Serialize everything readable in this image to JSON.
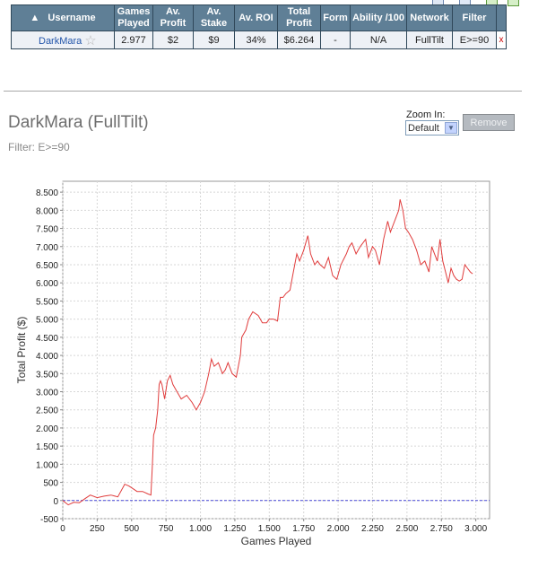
{
  "table": {
    "headers": [
      "Username",
      "Games Played",
      "Av. Profit",
      "Av. Stake",
      "Av. ROI",
      "Total Profit",
      "Form",
      "Ability /100",
      "Network",
      "Filter"
    ],
    "row": {
      "username": "DarkMara",
      "games_played": "2.977",
      "av_profit": "$2",
      "av_stake": "$9",
      "av_roi": "34%",
      "total_profit": "$6.264",
      "form": "-",
      "ability": "N/A",
      "network": "FullTilt",
      "filter": "E>=90",
      "delete": "x"
    }
  },
  "player": {
    "title": "DarkMara (FullTilt)",
    "filter_line": "Filter: E>=90"
  },
  "zoom": {
    "label": "Zoom In:",
    "value": "Default"
  },
  "remove_button": "Remove",
  "colors": {
    "header_bg": "#5f7f96",
    "line": "#e03c3c",
    "zero_line": "#4a4ad8",
    "grid": "#d7d7d7"
  },
  "chart_data": {
    "type": "line",
    "xlabel": "Games Played",
    "ylabel": "Total Profit ($)",
    "xlim": [
      0,
      3100
    ],
    "ylim": [
      -500,
      8800
    ],
    "x_ticks": [
      0,
      250,
      500,
      750,
      1000,
      1250,
      1500,
      1750,
      2000,
      2250,
      2500,
      2750,
      3000
    ],
    "x_tick_labels": [
      "0",
      "250",
      "500",
      "750",
      "1.000",
      "1.250",
      "1.500",
      "1.750",
      "2.000",
      "2.250",
      "2.500",
      "2.750",
      "3.000"
    ],
    "y_ticks": [
      -500,
      0,
      500,
      1000,
      1500,
      2000,
      2500,
      3000,
      3500,
      4000,
      4500,
      5000,
      5500,
      6000,
      6500,
      7000,
      7500,
      8000,
      8500
    ],
    "y_tick_labels": [
      "-500",
      "0",
      "500",
      "1.000",
      "1.500",
      "2.000",
      "2.500",
      "3.000",
      "3.500",
      "4.000",
      "4.500",
      "5.000",
      "5.500",
      "6.000",
      "6.500",
      "7.000",
      "7.500",
      "8.000",
      "8.500"
    ],
    "grid": true,
    "series": [
      {
        "x": [
          0,
          40,
          80,
          120,
          160,
          200,
          250,
          300,
          350,
          400,
          450,
          480,
          500,
          540,
          580,
          620,
          640,
          650,
          660,
          675,
          690,
          700,
          710,
          720,
          740,
          760,
          780,
          800,
          830,
          860,
          900,
          940,
          970,
          1000,
          1030,
          1060,
          1080,
          1100,
          1130,
          1160,
          1180,
          1200,
          1230,
          1260,
          1290,
          1300,
          1330,
          1350,
          1380,
          1420,
          1450,
          1480,
          1500,
          1530,
          1560,
          1580,
          1600,
          1620,
          1650,
          1670,
          1700,
          1720,
          1750,
          1780,
          1800,
          1830,
          1850,
          1870,
          1900,
          1930,
          1960,
          1990,
          2020,
          2060,
          2080,
          2100,
          2130,
          2160,
          2200,
          2220,
          2250,
          2270,
          2300,
          2330,
          2360,
          2380,
          2400,
          2420,
          2440,
          2450,
          2470,
          2490,
          2510,
          2540,
          2570,
          2600,
          2630,
          2660,
          2680,
          2700,
          2720,
          2740,
          2760,
          2780,
          2800,
          2820,
          2840,
          2860,
          2880,
          2900,
          2920,
          2940,
          2960,
          2977
        ],
        "values": [
          0,
          -120,
          -50,
          -60,
          50,
          150,
          80,
          120,
          150,
          100,
          450,
          400,
          350,
          250,
          250,
          180,
          150,
          900,
          1800,
          2000,
          2500,
          3200,
          3300,
          3200,
          2800,
          3300,
          3450,
          3200,
          3000,
          2800,
          2900,
          2700,
          2500,
          2700,
          3000,
          3500,
          3900,
          3700,
          3800,
          3500,
          3600,
          3800,
          3500,
          3400,
          4000,
          4500,
          4700,
          5000,
          5200,
          5100,
          4900,
          4900,
          5000,
          5000,
          4950,
          5600,
          5600,
          5700,
          5800,
          6200,
          6800,
          6600,
          6900,
          7300,
          6800,
          6500,
          6600,
          6500,
          6400,
          6700,
          6200,
          6100,
          6500,
          6800,
          7000,
          7100,
          6800,
          7000,
          7200,
          6700,
          7000,
          6900,
          6500,
          7200,
          7700,
          7400,
          7600,
          7800,
          8000,
          8300,
          8000,
          7500,
          7400,
          7200,
          6900,
          6500,
          6600,
          6300,
          7000,
          6800,
          6600,
          7200,
          6600,
          6300,
          6000,
          6400,
          6200,
          6100,
          6050,
          6100,
          6500,
          6400,
          6300,
          6250
        ]
      }
    ]
  }
}
